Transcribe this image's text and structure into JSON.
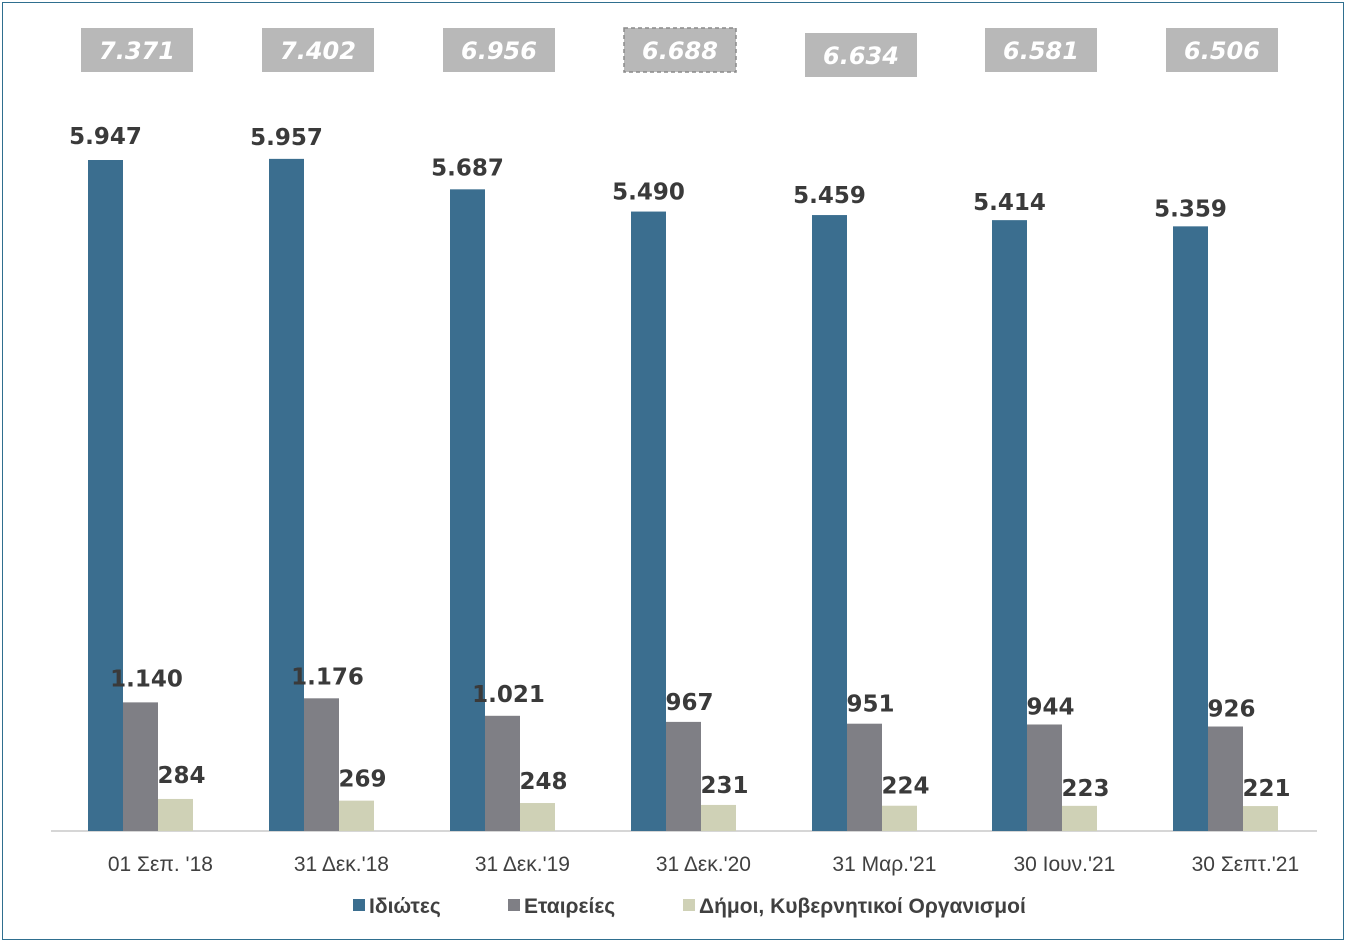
{
  "chart_data": {
    "type": "bar",
    "categories": [
      "01 Σεπ. '18",
      "31 Δεκ.'18",
      "31 Δεκ.'19",
      "31 Δεκ.'20",
      "31 Μαρ.'21",
      "30 Ιουν.'21",
      "30 Σεπτ.'21"
    ],
    "series": [
      {
        "name": "Ιδιώτες",
        "color": "#3b6e8f",
        "values": [
          5947,
          5957,
          5687,
          5490,
          5459,
          5414,
          5359
        ],
        "labels": [
          "5.947",
          "5.957",
          "5.687",
          "5.490",
          "5.459",
          "5.414",
          "5.359"
        ]
      },
      {
        "name": "Εταιρείες",
        "color": "#7f7f85",
        "values": [
          1140,
          1176,
          1021,
          967,
          951,
          944,
          926
        ],
        "labels": [
          "1.140",
          "1.176",
          "1.021",
          "967",
          "951",
          "944",
          "926"
        ]
      },
      {
        "name": "Δήμοι, Κυβερνητικοί Οργανισμοί",
        "color": "#cfd1b6",
        "values": [
          284,
          269,
          248,
          231,
          224,
          223,
          221
        ],
        "labels": [
          "284",
          "269",
          "248",
          "231",
          "224",
          "223",
          "221"
        ]
      }
    ],
    "totals": [
      "7.371",
      "7.402",
      "6.956",
      "6.688",
      "6.634",
      "6.581",
      "6.506"
    ],
    "ylim": [
      0,
      6000
    ],
    "grid": false,
    "legend": "bottom",
    "title": "",
    "xlabel": "",
    "ylabel": ""
  }
}
